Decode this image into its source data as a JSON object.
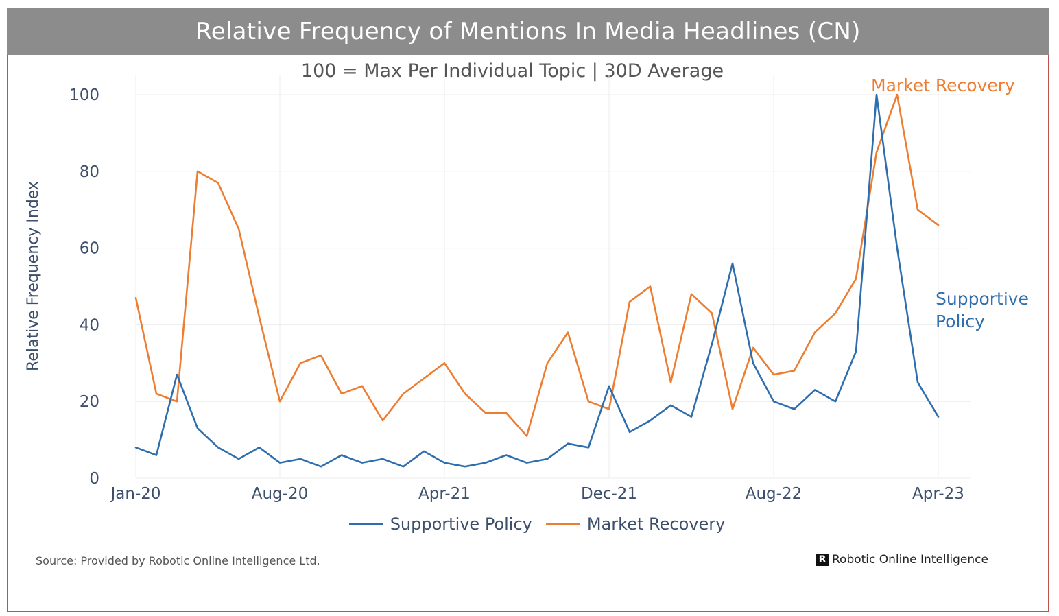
{
  "header": {
    "title": "Relative Frequency of Mentions In Media Headlines (CN)",
    "subtitle": "100 = Max Per Individual Topic | 30D Average"
  },
  "footer": {
    "source": "Source: Provided by Robotic Online Intelligence Ltd.",
    "brand_mark": "R",
    "brand_name": "Robotic Online Intelligence"
  },
  "colors": {
    "supportive": "#2e6eae",
    "market": "#ed7d31",
    "title_bar": "#8c8c8c",
    "border": "#c0504d"
  },
  "chart_data": {
    "type": "line",
    "title": "Relative Frequency of Mentions In Media Headlines (CN)",
    "subtitle": "100 = Max Per Individual Topic | 30D Average",
    "xlabel": "",
    "ylabel": "Relative Frequency Index",
    "ylim": [
      0,
      100
    ],
    "yticks": [
      0,
      20,
      40,
      60,
      80,
      100
    ],
    "xlim": [
      "2020-01",
      "2023-04"
    ],
    "xticks": [
      "Jan-20",
      "Aug-20",
      "Apr-21",
      "Dec-21",
      "Aug-22",
      "Apr-23"
    ],
    "grid": true,
    "legend": "bottom",
    "end_labels": [
      "Market Recovery",
      "Supportive Policy"
    ],
    "series": [
      {
        "name": "Supportive Policy",
        "x": [
          "2020-01",
          "2020-02",
          "2020-03",
          "2020-04",
          "2020-05",
          "2020-06",
          "2020-07",
          "2020-08",
          "2020-09",
          "2020-10",
          "2020-11",
          "2020-12",
          "2021-01",
          "2021-02",
          "2021-03",
          "2021-04",
          "2021-05",
          "2021-06",
          "2021-07",
          "2021-08",
          "2021-09",
          "2021-10",
          "2021-11",
          "2021-12",
          "2022-01",
          "2022-02",
          "2022-03",
          "2022-04",
          "2022-05",
          "2022-06",
          "2022-07",
          "2022-08",
          "2022-09",
          "2022-10",
          "2022-11",
          "2022-12",
          "2023-01",
          "2023-02",
          "2023-03",
          "2023-04"
        ],
        "values": [
          8,
          6,
          27,
          13,
          8,
          5,
          8,
          4,
          5,
          3,
          6,
          4,
          5,
          3,
          7,
          4,
          3,
          4,
          6,
          4,
          5,
          9,
          8,
          24,
          12,
          15,
          19,
          16,
          35,
          56,
          30,
          20,
          18,
          23,
          20,
          33,
          100,
          60,
          25,
          16
        ]
      },
      {
        "name": "Market Recovery",
        "x": [
          "2020-01",
          "2020-02",
          "2020-03",
          "2020-04",
          "2020-05",
          "2020-06",
          "2020-07",
          "2020-08",
          "2020-09",
          "2020-10",
          "2020-11",
          "2020-12",
          "2021-01",
          "2021-02",
          "2021-03",
          "2021-04",
          "2021-05",
          "2021-06",
          "2021-07",
          "2021-08",
          "2021-09",
          "2021-10",
          "2021-11",
          "2021-12",
          "2022-01",
          "2022-02",
          "2022-03",
          "2022-04",
          "2022-05",
          "2022-06",
          "2022-07",
          "2022-08",
          "2022-09",
          "2022-10",
          "2022-11",
          "2022-12",
          "2023-01",
          "2023-02",
          "2023-03",
          "2023-04"
        ],
        "values": [
          47,
          22,
          20,
          80,
          77,
          65,
          42,
          20,
          30,
          32,
          22,
          24,
          15,
          22,
          26,
          30,
          22,
          17,
          17,
          11,
          30,
          38,
          20,
          18,
          46,
          50,
          25,
          48,
          43,
          18,
          34,
          27,
          28,
          38,
          43,
          52,
          85,
          100,
          70,
          66
        ]
      }
    ]
  }
}
